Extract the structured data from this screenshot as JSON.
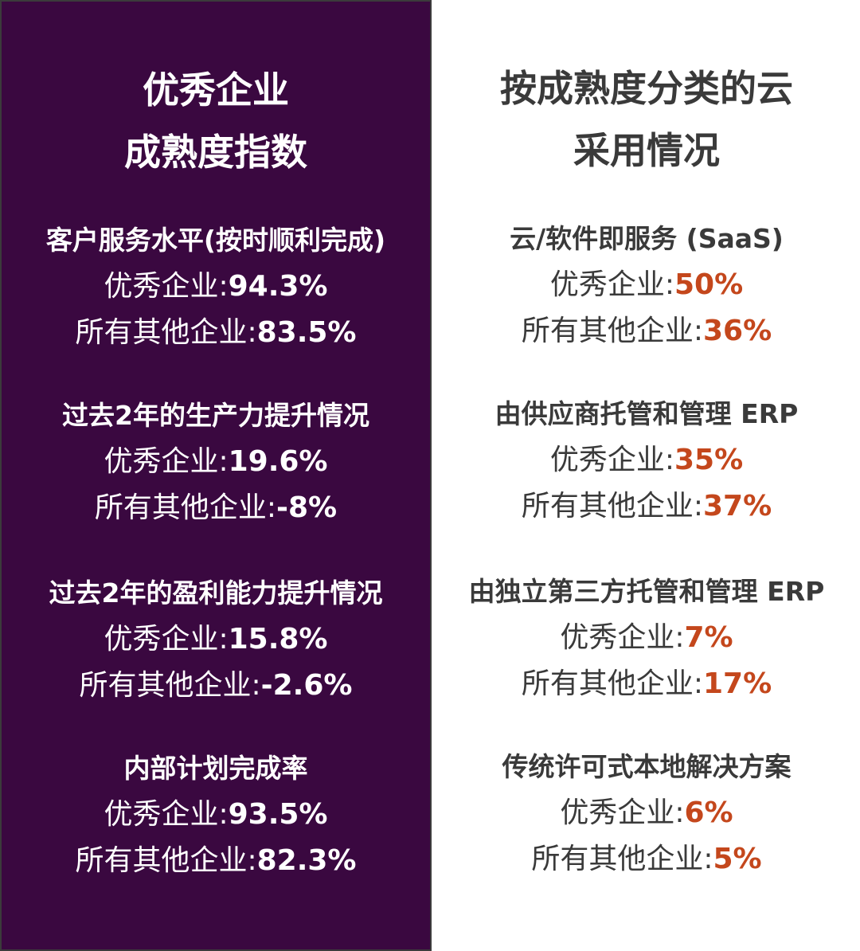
{
  "left": {
    "title": [
      "优秀企业",
      "成熟度指数"
    ],
    "sections": [
      {
        "heading": "客户服务水平(按时顺利完成)",
        "best_label": "优秀企业:",
        "best_value": "94.3%",
        "other_label": "所有其他企业:",
        "other_value": "83.5%"
      },
      {
        "heading": "过去2年的生产力提升情况",
        "best_label": "优秀企业:",
        "best_value": "19.6%",
        "other_label": "所有其他企业:",
        "other_value": "-8%"
      },
      {
        "heading": "过去2年的盈利能力提升情况",
        "best_label": "优秀企业:",
        "best_value": "15.8%",
        "other_label": "所有其他企业:",
        "other_value": "-2.6%"
      },
      {
        "heading": "内部计划完成率",
        "best_label": "优秀企业:",
        "best_value": "93.5%",
        "other_label": "所有其他企业:",
        "other_value": "82.3%"
      }
    ]
  },
  "right": {
    "title": [
      "按成熟度分类的云",
      "采用情况"
    ],
    "sections": [
      {
        "heading": "云/软件即服务 (SaaS)",
        "best_label": "优秀企业:",
        "best_value": "50%",
        "other_label": "所有其他企业:",
        "other_value": "36%"
      },
      {
        "heading": "由供应商托管和管理 ERP",
        "best_label": "优秀企业:",
        "best_value": "35%",
        "other_label": "所有其他企业:",
        "other_value": "37%"
      },
      {
        "heading": "由独立第三方托管和管理 ERP",
        "best_label": "优秀企业:",
        "best_value": "7%",
        "other_label": "所有其他企业:",
        "other_value": "17%"
      },
      {
        "heading": "传统许可式本地解决方案",
        "best_label": "优秀企业:",
        "best_value": "6%",
        "other_label": "所有其他企业:",
        "other_value": "5%"
      }
    ]
  },
  "colors": {
    "left_bg": "#3a0840",
    "accent": "#c4471c",
    "text": "#3a3a3a"
  }
}
